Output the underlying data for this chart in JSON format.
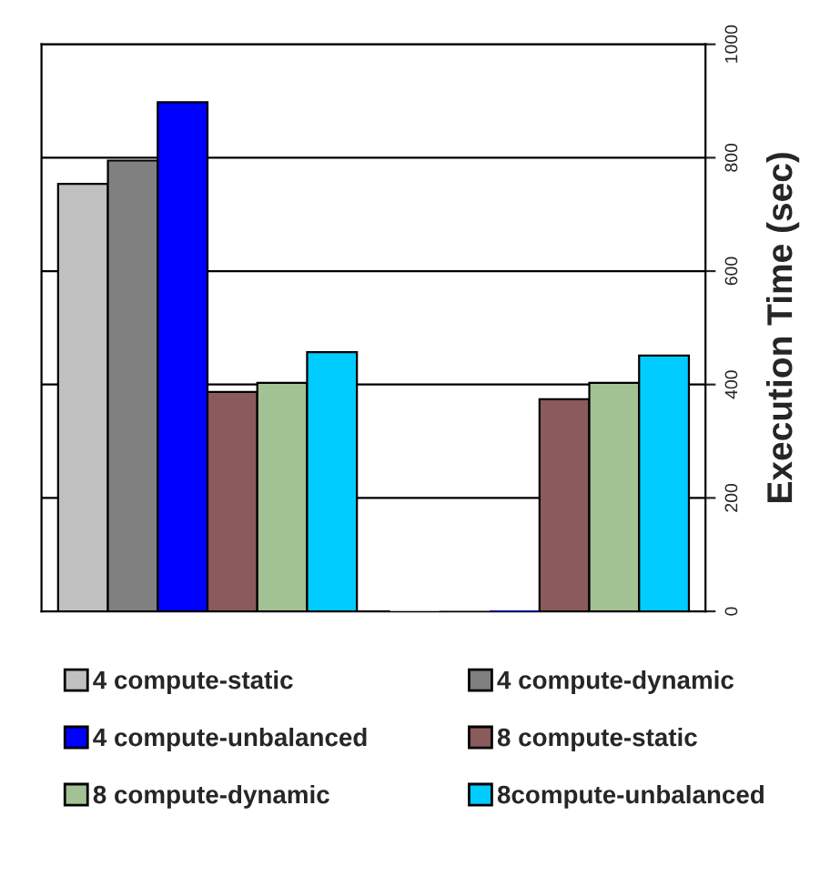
{
  "chart_data": {
    "type": "bar",
    "categories": [
      null,
      null
    ],
    "series": [
      {
        "name": "4 compute-static",
        "color": "#c0c0c0",
        "values": [
          754,
          0
        ]
      },
      {
        "name": "4 compute-dynamic",
        "color": "#808080",
        "values": [
          795,
          0
        ]
      },
      {
        "name": "4 compute-unbalanced",
        "color": "#0000ff",
        "values": [
          898,
          0
        ]
      },
      {
        "name": "8 compute-static",
        "color": "#8b5a5a",
        "values": [
          387,
          374
        ]
      },
      {
        "name": "8 compute-dynamic",
        "color": "#a3c293",
        "values": [
          403,
          403
        ]
      },
      {
        "name": "8compute-unbalanced",
        "color": "#00ccff",
        "values": [
          457,
          451
        ]
      }
    ],
    "ylabel": "Execution Time (sec)",
    "ylim": [
      0,
      1000
    ],
    "yticks": [
      0,
      200,
      400,
      600,
      800,
      1000
    ],
    "grid": "y",
    "legend": "bottom"
  }
}
